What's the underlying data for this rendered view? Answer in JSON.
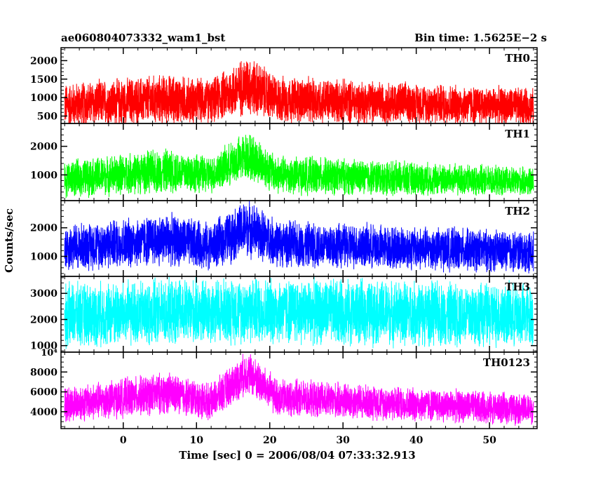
{
  "chart_data": {
    "type": "line",
    "title_left": "ae060804073332_wam1_bst",
    "title_right": "Bin time: 1.5625E−2 s",
    "xlabel": "Time [sec] 0 = 2006/08/04 07:33:32.913",
    "ylabel": "Counts/sec",
    "xlim": [
      -8.5,
      56.5
    ],
    "x_ticks": [
      0,
      10,
      20,
      30,
      40,
      50
    ],
    "x_tick_labels": [
      "0",
      "10",
      "20",
      "30",
      "40",
      "50"
    ],
    "x_data_range": [
      -8.0,
      56.0
    ],
    "panels": [
      {
        "name": "TH0",
        "color": "#ff0000",
        "ylim": [
          300,
          2350
        ],
        "y_ticks": [
          500,
          1000,
          1500,
          2000
        ],
        "y_tick_labels": [
          "500",
          "1000",
          "1500",
          "2000"
        ],
        "minor_step": 100,
        "profile": [
          {
            "t": -8,
            "mean": 800,
            "spread": 650
          },
          {
            "t": 6,
            "mean": 950,
            "spread": 750
          },
          {
            "t": 12,
            "mean": 900,
            "spread": 650
          },
          {
            "t": 17,
            "mean": 1350,
            "spread": 900
          },
          {
            "t": 21,
            "mean": 950,
            "spread": 700
          },
          {
            "t": 56,
            "mean": 750,
            "spread": 550
          }
        ]
      },
      {
        "name": "TH1",
        "color": "#00ff00",
        "ylim": [
          100,
          2800
        ],
        "y_ticks": [
          1000,
          2000
        ],
        "y_tick_labels": [
          "1000",
          "2000"
        ],
        "minor_step": 200,
        "profile": [
          {
            "t": -8,
            "mean": 850,
            "spread": 700
          },
          {
            "t": 6,
            "mean": 1150,
            "spread": 850
          },
          {
            "t": 12,
            "mean": 1000,
            "spread": 700
          },
          {
            "t": 17,
            "mean": 1700,
            "spread": 950
          },
          {
            "t": 21,
            "mean": 1000,
            "spread": 750
          },
          {
            "t": 56,
            "mean": 750,
            "spread": 550
          }
        ]
      },
      {
        "name": "TH2",
        "color": "#0000ff",
        "ylim": [
          300,
          2950
        ],
        "y_ticks": [
          1000,
          2000
        ],
        "y_tick_labels": [
          "1000",
          "2000"
        ],
        "minor_step": 200,
        "profile": [
          {
            "t": -8,
            "mean": 1300,
            "spread": 900
          },
          {
            "t": 6,
            "mean": 1600,
            "spread": 1000
          },
          {
            "t": 12,
            "mean": 1350,
            "spread": 900
          },
          {
            "t": 17,
            "mean": 2000,
            "spread": 1100
          },
          {
            "t": 21,
            "mean": 1450,
            "spread": 900
          },
          {
            "t": 56,
            "mean": 1150,
            "spread": 800
          }
        ]
      },
      {
        "name": "TH3",
        "color": "#00ffff",
        "ylim": [
          750,
          3650
        ],
        "y_ticks": [
          1000,
          2000,
          3000
        ],
        "y_tick_labels": [
          "1000",
          "2000",
          "3000"
        ],
        "minor_step": 200,
        "profile": [
          {
            "t": -8,
            "mean": 2150,
            "spread": 1350
          },
          {
            "t": 17,
            "mean": 2350,
            "spread": 1400
          },
          {
            "t": 56,
            "mean": 2150,
            "spread": 1350
          }
        ]
      },
      {
        "name": "TH0123",
        "color": "#ff00ff",
        "ylim": [
          2300,
          10000
        ],
        "y_ticks": [
          4000,
          6000,
          8000
        ],
        "y_tick_labels": [
          "4000",
          "6000",
          "8000"
        ],
        "top_label": "10⁴",
        "minor_step": 500,
        "profile": [
          {
            "t": -8,
            "mean": 4700,
            "spread": 2000
          },
          {
            "t": 6,
            "mean": 5900,
            "spread": 2300
          },
          {
            "t": 12,
            "mean": 5000,
            "spread": 2000
          },
          {
            "t": 17,
            "mean": 8000,
            "spread": 2400
          },
          {
            "t": 21,
            "mean": 5400,
            "spread": 2100
          },
          {
            "t": 56,
            "mean": 4200,
            "spread": 1700
          }
        ]
      }
    ]
  }
}
